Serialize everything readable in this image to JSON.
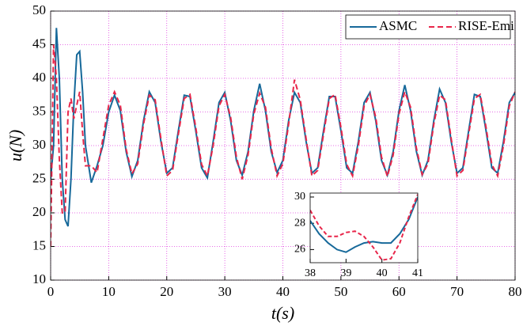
{
  "chart_data": [
    {
      "type": "line",
      "x_label": "t(s)",
      "y_label": "u(N)",
      "x": [
        0,
        0.5,
        1,
        1.5,
        2,
        2.5,
        3,
        3.5,
        4,
        4.5,
        5,
        5.5,
        6,
        7,
        8,
        9,
        10,
        11,
        12,
        13,
        14,
        15,
        16,
        17,
        18,
        19,
        20,
        21,
        22,
        23,
        24,
        25,
        26,
        27,
        28,
        29,
        30,
        31,
        32,
        33,
        34,
        35,
        36,
        37,
        38,
        39,
        40,
        41,
        42,
        43,
        44,
        45,
        46,
        47,
        48,
        49,
        50,
        51,
        52,
        53,
        54,
        55,
        56,
        57,
        58,
        59,
        60,
        61,
        62,
        63,
        64,
        65,
        66,
        67,
        68,
        69,
        70,
        71,
        72,
        73,
        74,
        75,
        76,
        77,
        78,
        79,
        80
      ],
      "series": [
        {
          "name": "ASMC",
          "color": "#17699a",
          "dash": "none",
          "values": [
            25,
            30,
            47.5,
            40,
            25,
            19,
            18,
            25,
            36,
            43.5,
            44,
            38,
            30,
            24.5,
            27,
            30,
            35,
            37.5,
            35.2,
            29.1,
            25.4,
            27.8,
            33.7,
            38,
            36.4,
            30.6,
            25.9,
            26.7,
            32.2,
            37.5,
            37.3,
            32.2,
            26.7,
            25.2,
            30.6,
            36.4,
            37.9,
            33.7,
            27.8,
            25.6,
            29.1,
            35.2,
            39.2,
            35.2,
            29.1,
            26,
            27.8,
            33.7,
            37.9,
            36.4,
            30.6,
            25.9,
            26.7,
            32.2,
            37.3,
            37.3,
            32.2,
            26.7,
            25.9,
            30.6,
            36.4,
            37.9,
            33.7,
            27.8,
            25.6,
            29.1,
            35.2,
            39,
            35.2,
            29.1,
            25.6,
            27.8,
            33.7,
            38.4,
            36.4,
            30.6,
            25.9,
            26.7,
            32.2,
            37.6,
            37.3,
            32.2,
            26.7,
            25.9,
            30.6,
            36.4,
            37.9
          ]
        },
        {
          "name": "RISE-Emi",
          "color": "#e8264a",
          "dash": "7 4",
          "values": [
            15,
            45,
            40,
            28,
            20,
            20,
            35,
            37,
            34,
            36,
            38,
            32,
            27,
            27,
            26,
            31,
            36,
            38,
            36,
            29.5,
            25.8,
            27.3,
            33.2,
            37.5,
            36.8,
            31,
            25.5,
            26.3,
            31.7,
            37,
            37.6,
            32.7,
            27.2,
            25.5,
            30,
            35.9,
            37.6,
            34.2,
            28.3,
            25,
            28.6,
            34.7,
            37.8,
            35.7,
            29.6,
            25.5,
            27.3,
            33.2,
            39.8,
            36.8,
            31,
            25.5,
            26.3,
            31.7,
            37,
            37.6,
            32.7,
            27.2,
            25.5,
            30,
            35.9,
            37.6,
            34.2,
            28.3,
            25.4,
            28.6,
            34.7,
            38,
            35.7,
            29.6,
            25.7,
            27.3,
            33.2,
            37.5,
            36.8,
            31,
            25.5,
            26.3,
            31.7,
            37,
            37.6,
            32.7,
            27.2,
            25.5,
            30,
            35.9,
            38
          ]
        }
      ],
      "xlim": [
        0,
        80
      ],
      "ylim": [
        10,
        50
      ],
      "xticks": [
        0,
        10,
        20,
        30,
        40,
        50,
        60,
        70,
        80
      ],
      "yticks": [
        10,
        15,
        20,
        25,
        30,
        35,
        40,
        45,
        50
      ],
      "grid": true,
      "legend": "top-right"
    },
    {
      "type": "line",
      "x": [
        38,
        38.25,
        38.5,
        38.75,
        39,
        39.25,
        39.5,
        39.75,
        40,
        40.25,
        40.5,
        40.75,
        41
      ],
      "series": [
        {
          "color": "#17699a",
          "dash": "none",
          "values": [
            28.2,
            27.2,
            26.5,
            26,
            25.8,
            26.2,
            26.5,
            26.6,
            26.5,
            26.5,
            27.2,
            28.3,
            30
          ]
        },
        {
          "color": "#e8264a",
          "dash": "5 3",
          "values": [
            29,
            27.8,
            27,
            27,
            27.3,
            27.4,
            27,
            26.2,
            25.2,
            25.3,
            26.5,
            28.5,
            30.2
          ]
        }
      ],
      "xlim": [
        38,
        41
      ],
      "ylim": [
        25,
        30.3
      ],
      "xticks": [
        38,
        39,
        40,
        41
      ],
      "yticks": [
        26,
        28,
        30
      ],
      "grid": false
    }
  ]
}
